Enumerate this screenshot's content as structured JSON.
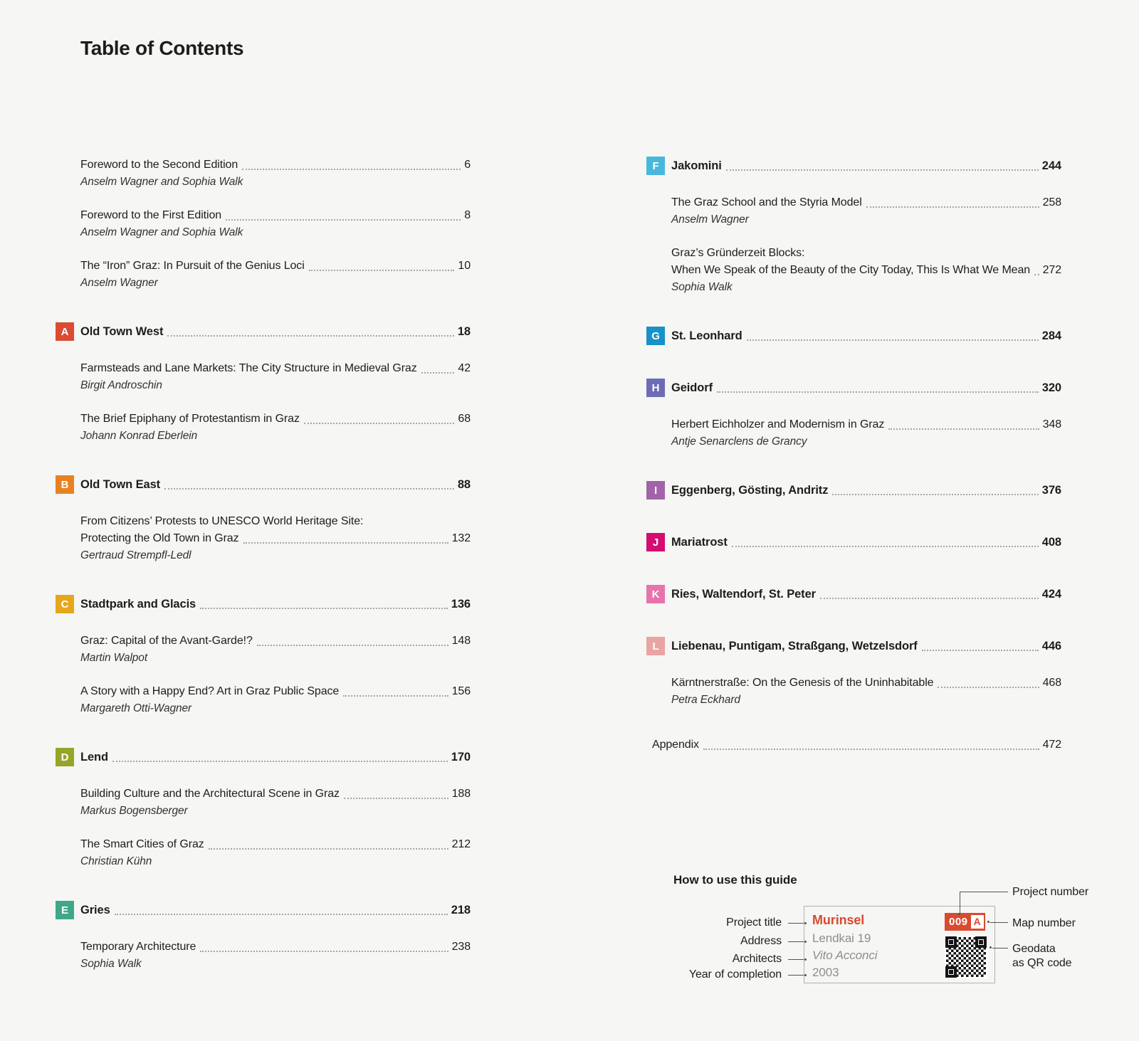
{
  "page": {
    "title": "Table of Contents",
    "background": "#f6f6f4",
    "accent": "#d94a30"
  },
  "left": {
    "rows": [
      {
        "type": "entry",
        "title": "Foreword to the Second Edition",
        "page": "6",
        "author": "Anselm Wagner and Sophia Walk"
      },
      {
        "type": "entry",
        "title": "Foreword to the First Edition",
        "page": "8",
        "author": "Anselm Wagner and Sophia Walk"
      },
      {
        "type": "entry",
        "title": "The “Iron” Graz: In Pursuit of the Genius Loci",
        "page": "10",
        "author": "Anselm Wagner"
      },
      {
        "type": "section",
        "letter": "A",
        "color": "#db4b32",
        "title": "Old Town West",
        "page": "18"
      },
      {
        "type": "entry",
        "title": "Farmsteads and Lane Markets: The City Structure in Medieval Graz",
        "page": "42",
        "author": "Birgit Androschin"
      },
      {
        "type": "entry",
        "title": "The Brief Epiphany of Protestantism in Graz",
        "page": "68",
        "author": "Johann Konrad Eberlein"
      },
      {
        "type": "section",
        "letter": "B",
        "color": "#e8821f",
        "title": "Old Town East",
        "page": "88"
      },
      {
        "type": "entry2",
        "line1": "From Citizens’ Protests to UNESCO World Heritage Site:",
        "line2": "Protecting the Old Town in Graz",
        "page": "132",
        "author": "Gertraud Strempfl-Ledl"
      },
      {
        "type": "section",
        "letter": "C",
        "color": "#e5a81d",
        "title": "Stadtpark and Glacis",
        "page": "136"
      },
      {
        "type": "entry",
        "title": "Graz: Capital of the Avant-Garde!?",
        "page": "148",
        "author": "Martin Walpot"
      },
      {
        "type": "entry",
        "title": "A Story with a Happy End? Art in Graz Public Space",
        "page": "156",
        "author": "Margareth Otti-Wagner"
      },
      {
        "type": "section",
        "letter": "D",
        "color": "#96a527",
        "title": "Lend",
        "page": "170"
      },
      {
        "type": "entry",
        "title": "Building Culture and the Architectural Scene in Graz",
        "page": "188",
        "author": "Markus Bogensberger"
      },
      {
        "type": "entry",
        "title": "The Smart Cities of Graz",
        "page": "212",
        "author": "Christian Kühn"
      },
      {
        "type": "section",
        "letter": "E",
        "color": "#3fa888",
        "title": "Gries",
        "page": "218"
      },
      {
        "type": "entry",
        "title": "Temporary Architecture",
        "page": "238",
        "author": "Sophia Walk"
      }
    ]
  },
  "right": {
    "rows": [
      {
        "type": "section",
        "letter": "F",
        "color": "#47b8dc",
        "title": "Jakomini",
        "page": "244"
      },
      {
        "type": "entry",
        "title": "The Graz School and the Styria Model",
        "page": "258",
        "author": "Anselm Wagner"
      },
      {
        "type": "entry2",
        "line1": "Graz’s Gründerzeit Blocks:",
        "line2": "When We Speak of the Beauty of the City Today, This Is What We Mean",
        "page": "272",
        "author": "Sophia Walk"
      },
      {
        "type": "section",
        "letter": "G",
        "color": "#1791c6",
        "title": "St. Leonhard",
        "page": "284"
      },
      {
        "type": "section",
        "letter": "H",
        "color": "#6e6cb4",
        "title": "Geidorf",
        "page": "320"
      },
      {
        "type": "entry",
        "title": "Herbert Eichholzer and Modernism in Graz",
        "page": "348",
        "author": "Antje Senarclens de Grancy"
      },
      {
        "type": "section",
        "letter": "I",
        "color": "#a263a9",
        "title": "Eggenberg, Gösting, Andritz",
        "page": "376"
      },
      {
        "type": "section",
        "letter": "J",
        "color": "#d50c72",
        "title": "Mariatrost",
        "page": "408"
      },
      {
        "type": "section",
        "letter": "K",
        "color": "#e673ac",
        "title": "Ries, Waltendorf, St. Peter",
        "page": "424"
      },
      {
        "type": "section",
        "letter": "L",
        "color": "#e9a4a3",
        "title": "Liebenau, Puntigam, Straßgang, Wetzelsdorf",
        "page": "446"
      },
      {
        "type": "entry",
        "title": "Kärntnerstraße: On the Genesis of the Uninhabitable",
        "page": "468",
        "author": "Petra Eckhard"
      },
      {
        "type": "plain",
        "title": "Appendix",
        "page": "472"
      }
    ]
  },
  "guide": {
    "heading": "How to use this guide",
    "left_labels": [
      "Project title",
      "Address",
      "Architects",
      "Year of completion"
    ],
    "right_labels": [
      "Project number",
      "Map number",
      "Geodata",
      "as QR code"
    ],
    "card": {
      "title": "Murinsel",
      "address": "Lendkai 19",
      "architects": "Vito Acconci",
      "year": "2003",
      "project_number": "009",
      "map_letter": "A"
    },
    "accent": "#d94a30"
  }
}
